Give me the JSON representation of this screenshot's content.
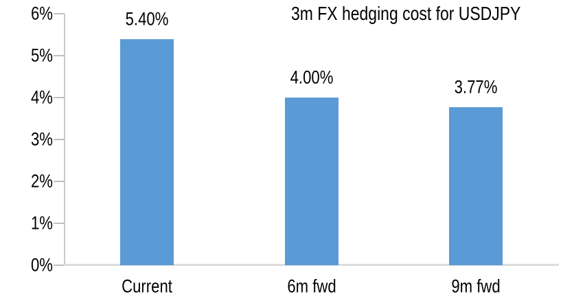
{
  "chart_data": {
    "type": "bar",
    "title": "3m FX hedging cost for USDJPY",
    "categories": [
      "Current",
      "6m fwd",
      "9m fwd"
    ],
    "values": [
      5.4,
      4.0,
      3.77
    ],
    "value_labels": [
      "5.40%",
      "4.00%",
      "3.77%"
    ],
    "y_ticks": [
      "6%",
      "5%",
      "4%",
      "3%",
      "2%",
      "1%",
      "0%"
    ],
    "ylim": [
      0,
      6
    ],
    "xlabel": "",
    "ylabel": "",
    "grid": false,
    "legend": "none",
    "bar_color": "#5B9BD5",
    "axis_line_color": "#DCDCDC",
    "tick_color": "#BFBFBF",
    "text_color": "#000000"
  }
}
